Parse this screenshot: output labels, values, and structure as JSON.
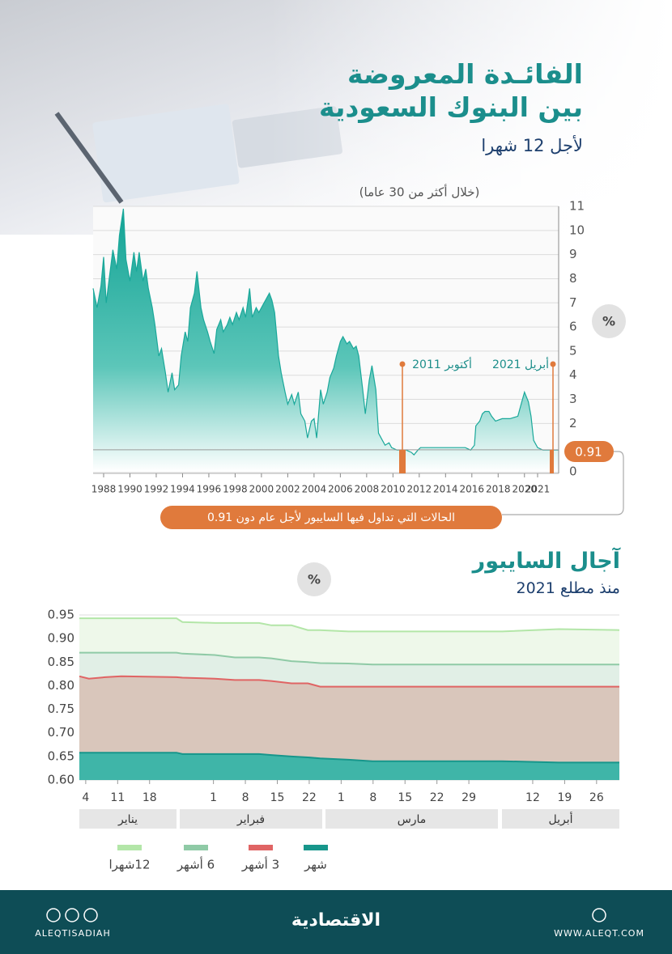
{
  "header": {
    "title_line1": "الفائـدة المعروضة",
    "title_line2": "بين البنوك السعودية",
    "subtitle": "لأجل 12 شهرا"
  },
  "chart_data": [
    {
      "type": "area",
      "subtitle": "(خلال أكثر من 30 عاما)",
      "y_unit": "%",
      "color": "#1aa89a",
      "x": [
        1987.2,
        1987.5,
        1987.8,
        1988.0,
        1988.2,
        1988.4,
        1988.7,
        1989.0,
        1989.2,
        1989.5,
        1989.7,
        1990.0,
        1990.3,
        1990.5,
        1990.7,
        1991.0,
        1991.2,
        1991.4,
        1991.7,
        1991.9,
        1992.2,
        1992.4,
        1992.7,
        1992.9,
        1993.2,
        1993.4,
        1993.7,
        1993.9,
        1994.2,
        1994.4,
        1994.6,
        1994.9,
        1995.1,
        1995.4,
        1995.6,
        1995.9,
        1996.1,
        1996.4,
        1996.6,
        1996.9,
        1997.1,
        1997.4,
        1997.6,
        1997.8,
        1998.1,
        1998.3,
        1998.6,
        1998.8,
        1999.1,
        1999.3,
        1999.6,
        1999.8,
        2000.1,
        2000.3,
        2000.6,
        2000.8,
        2001.0,
        2001.3,
        2001.5,
        2001.8,
        2002.0,
        2002.3,
        2002.5,
        2002.8,
        2003.0,
        2003.3,
        2003.5,
        2003.8,
        2004.0,
        2004.2,
        2004.5,
        2004.7,
        2005.0,
        2005.2,
        2005.5,
        2005.7,
        2006.0,
        2006.2,
        2006.5,
        2006.7,
        2007.0,
        2007.2,
        2007.4,
        2007.7,
        2007.9,
        2008.2,
        2008.4,
        2008.7,
        2008.9,
        2009.2,
        2009.4,
        2009.7,
        2009.9,
        2010.3,
        2010.6,
        2011.0,
        2011.4,
        2011.6,
        2011.9,
        2012.1,
        2012.7,
        2013.4,
        2014.6,
        2015.5,
        2015.9,
        2016.2,
        2016.3,
        2016.6,
        2016.8,
        2017.0,
        2017.3,
        2017.5,
        2017.8,
        2018.3,
        2018.9,
        2019.5,
        2019.8,
        2020.0,
        2020.3,
        2020.5,
        2020.7,
        2021.0,
        2021.4,
        2022.0,
        2022.6
      ],
      "values": [
        7.6,
        6.8,
        7.7,
        8.9,
        7.0,
        7.9,
        9.2,
        8.4,
        9.8,
        10.9,
        8.8,
        7.9,
        9.1,
        8.3,
        9.1,
        7.9,
        8.4,
        7.6,
        6.8,
        6.1,
        4.8,
        5.1,
        4.1,
        3.3,
        4.1,
        3.4,
        3.6,
        4.8,
        5.8,
        5.4,
        6.8,
        7.4,
        8.3,
        6.8,
        6.3,
        5.8,
        5.4,
        4.9,
        5.9,
        6.3,
        5.8,
        6.1,
        6.4,
        6.1,
        6.6,
        6.3,
        6.8,
        6.4,
        7.6,
        6.4,
        6.8,
        6.6,
        6.9,
        7.1,
        7.4,
        7.1,
        6.6,
        4.8,
        4.1,
        3.3,
        2.8,
        3.2,
        2.8,
        3.3,
        2.4,
        2.1,
        1.4,
        2.1,
        2.2,
        1.4,
        3.4,
        2.8,
        3.3,
        3.9,
        4.3,
        4.8,
        5.4,
        5.6,
        5.3,
        5.4,
        5.1,
        5.2,
        4.8,
        3.4,
        2.4,
        3.8,
        4.4,
        3.4,
        1.6,
        1.3,
        1.1,
        1.2,
        1.0,
        0.9,
        0.9,
        0.9,
        0.8,
        0.7,
        0.9,
        1.0,
        1.0,
        1.0,
        1.0,
        1.0,
        0.9,
        1.1,
        1.9,
        2.1,
        2.4,
        2.5,
        2.5,
        2.3,
        2.1,
        2.2,
        2.2,
        2.3,
        2.9,
        3.3,
        2.9,
        2.3,
        1.3,
        1.0,
        0.9,
        0.9,
        0.9
      ],
      "xlim": [
        1987.2,
        2022.6
      ],
      "xticks": [
        1988,
        1990,
        1992,
        1994,
        1996,
        1998,
        2000,
        2002,
        2004,
        2006,
        2008,
        2010,
        2012,
        2014,
        2016,
        2018,
        2020,
        2021
      ],
      "ylim": [
        0,
        11
      ],
      "yticks": [
        0,
        2,
        3,
        4,
        5,
        6,
        7,
        8,
        9,
        10,
        11
      ],
      "grid": true,
      "threshold": 0.91,
      "threshold_note": "الحالات التي تداول فيها السايبور لأجل عام دون 0.91",
      "annotations": [
        "أكتوبر 2011",
        "أبريل 2021"
      ]
    },
    {
      "type": "area",
      "title": "آجال السايبور",
      "subtitle": "منذ مطلع 2021",
      "y_unit": "%",
      "x": [
        2.6,
        4.7,
        8.3,
        11.8,
        23.9,
        25.2,
        32.3,
        36.7,
        42.0,
        44.7,
        49.1,
        52.7,
        55.4,
        61.6,
        66.9,
        95.3,
        107.7,
        121.0
      ],
      "series": [
        {
          "name": "12شهرا",
          "color": "#b3e6a8",
          "fill": "#eef8ea",
          "values": [
            0.943,
            0.943,
            0.943,
            0.943,
            0.943,
            0.935,
            0.933,
            0.933,
            0.933,
            0.928,
            0.928,
            0.918,
            0.918,
            0.915,
            0.915,
            0.915,
            0.92,
            0.918
          ]
        },
        {
          "name": "6 أشهر",
          "color": "#8fcaa6",
          "fill": "#e1efe6",
          "values": [
            0.87,
            0.87,
            0.87,
            0.87,
            0.87,
            0.868,
            0.865,
            0.86,
            0.86,
            0.858,
            0.852,
            0.85,
            0.848,
            0.847,
            0.845,
            0.845,
            0.845,
            0.845
          ]
        },
        {
          "name": "3 أشهر",
          "color": "#e06464",
          "fill": "#d9c6bb",
          "values": [
            0.82,
            0.815,
            0.818,
            0.82,
            0.818,
            0.817,
            0.815,
            0.812,
            0.812,
            0.81,
            0.805,
            0.805,
            0.798,
            0.798,
            0.798,
            0.798,
            0.798,
            0.798
          ]
        },
        {
          "name": "شهر",
          "color": "#17968b",
          "fill": "#3fb5a8",
          "values": [
            0.658,
            0.658,
            0.658,
            0.658,
            0.658,
            0.655,
            0.655,
            0.655,
            0.655,
            0.653,
            0.65,
            0.648,
            0.646,
            0.643,
            0.64,
            0.64,
            0.637,
            0.637
          ]
        }
      ],
      "xlim": [
        2.6,
        121
      ],
      "xticks": [
        4,
        11,
        18,
        {
          "value": 32,
          "label": "1"
        },
        {
          "value": 39,
          "label": "8"
        },
        {
          "value": 46,
          "label": "15"
        },
        {
          "value": 53,
          "label": "22"
        },
        {
          "value": 60,
          "label": "1"
        },
        {
          "value": 67,
          "label": "8"
        },
        {
          "value": 74,
          "label": "15"
        },
        {
          "value": 81,
          "label": "22"
        },
        {
          "value": 88,
          "label": "29"
        },
        {
          "value": 102,
          "label": "12"
        },
        {
          "value": 109,
          "label": "19"
        },
        {
          "value": 116,
          "label": "26"
        }
      ],
      "months": [
        "يناير",
        "فبراير",
        "مارس",
        "أبريل"
      ],
      "ylim": [
        0.6,
        0.95
      ],
      "yticks": [
        {
          "value": 0.6,
          "label": "0.60"
        },
        0.65,
        {
          "value": 0.7,
          "label": "0.70"
        },
        0.75,
        {
          "value": 0.8,
          "label": "0.80"
        },
        0.85,
        {
          "value": 0.9,
          "label": "0.90"
        },
        0.95
      ],
      "grid": true
    }
  ],
  "footer": {
    "handle": "ALEQTISADIAH",
    "logo": "الاقتصادية",
    "website": "WWW.ALEQT.COM"
  }
}
